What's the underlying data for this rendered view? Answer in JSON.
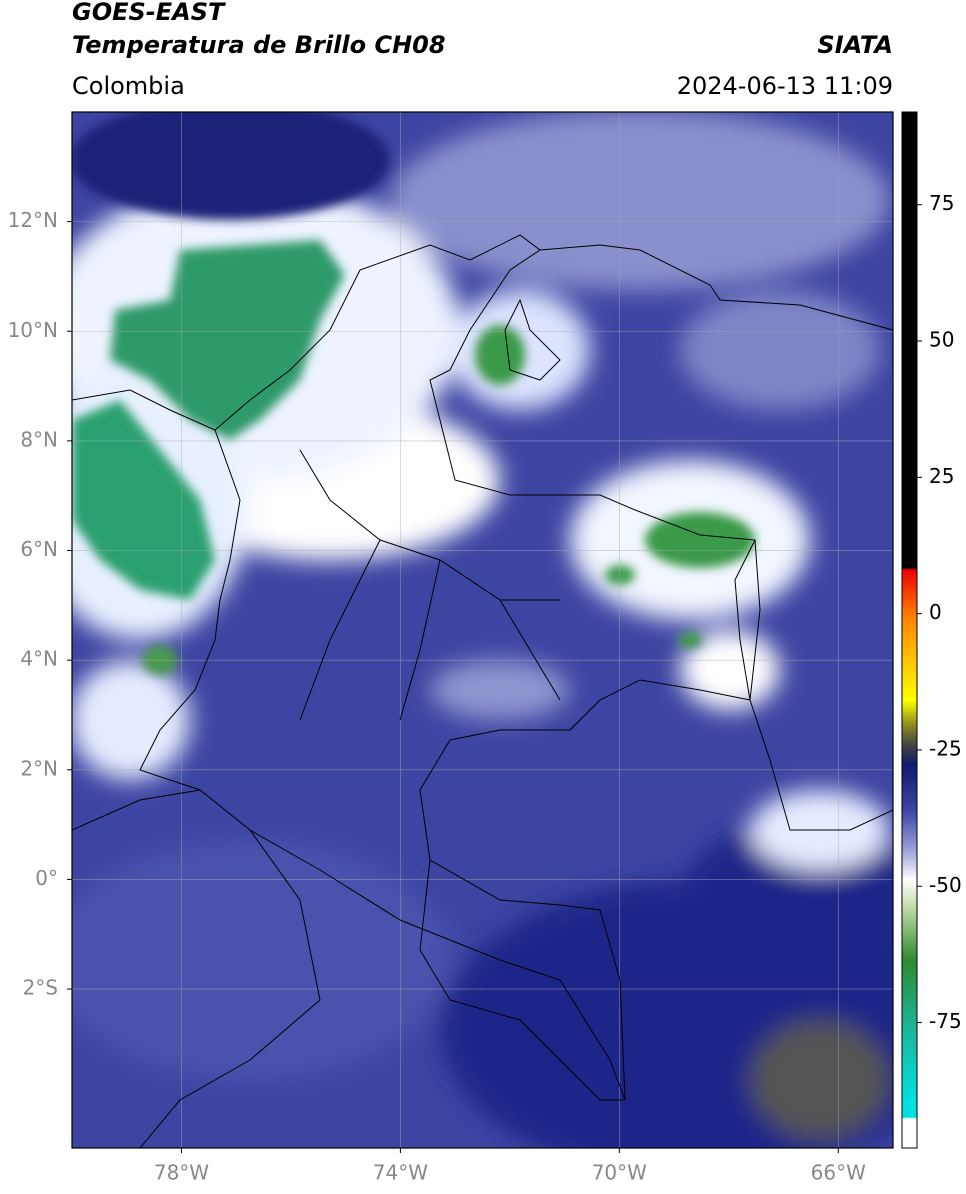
{
  "map": {
    "title": "GOES-EAST",
    "subtitle": "Temperatura de Brillo CH08",
    "source": "SIATA",
    "region": "Colombia",
    "datetime": "2024-06-13 11:09",
    "xlim": [
      -80,
      -65
    ],
    "xticks": [
      {
        "value": -78,
        "label": "78°W"
      },
      {
        "value": -74,
        "label": "74°W"
      },
      {
        "value": -70,
        "label": "70°W"
      },
      {
        "value": -66,
        "label": "66°W"
      }
    ],
    "ylim": [
      -4.9,
      14
    ],
    "yticks": [
      {
        "value": 12,
        "label": "12°N"
      },
      {
        "value": 10,
        "label": "10°N"
      },
      {
        "value": 8,
        "label": "8°N"
      },
      {
        "value": 6,
        "label": "6°N"
      },
      {
        "value": 4,
        "label": "4°N"
      },
      {
        "value": 2,
        "label": "2°N"
      },
      {
        "value": 0,
        "label": "0°"
      },
      {
        "value": -2,
        "label": "2°S"
      }
    ],
    "grid": true,
    "colorbar": {
      "lim": [
        -98,
        92
      ],
      "ticks": [
        75,
        50,
        25,
        0,
        -25,
        -50,
        -75
      ]
    }
  }
}
